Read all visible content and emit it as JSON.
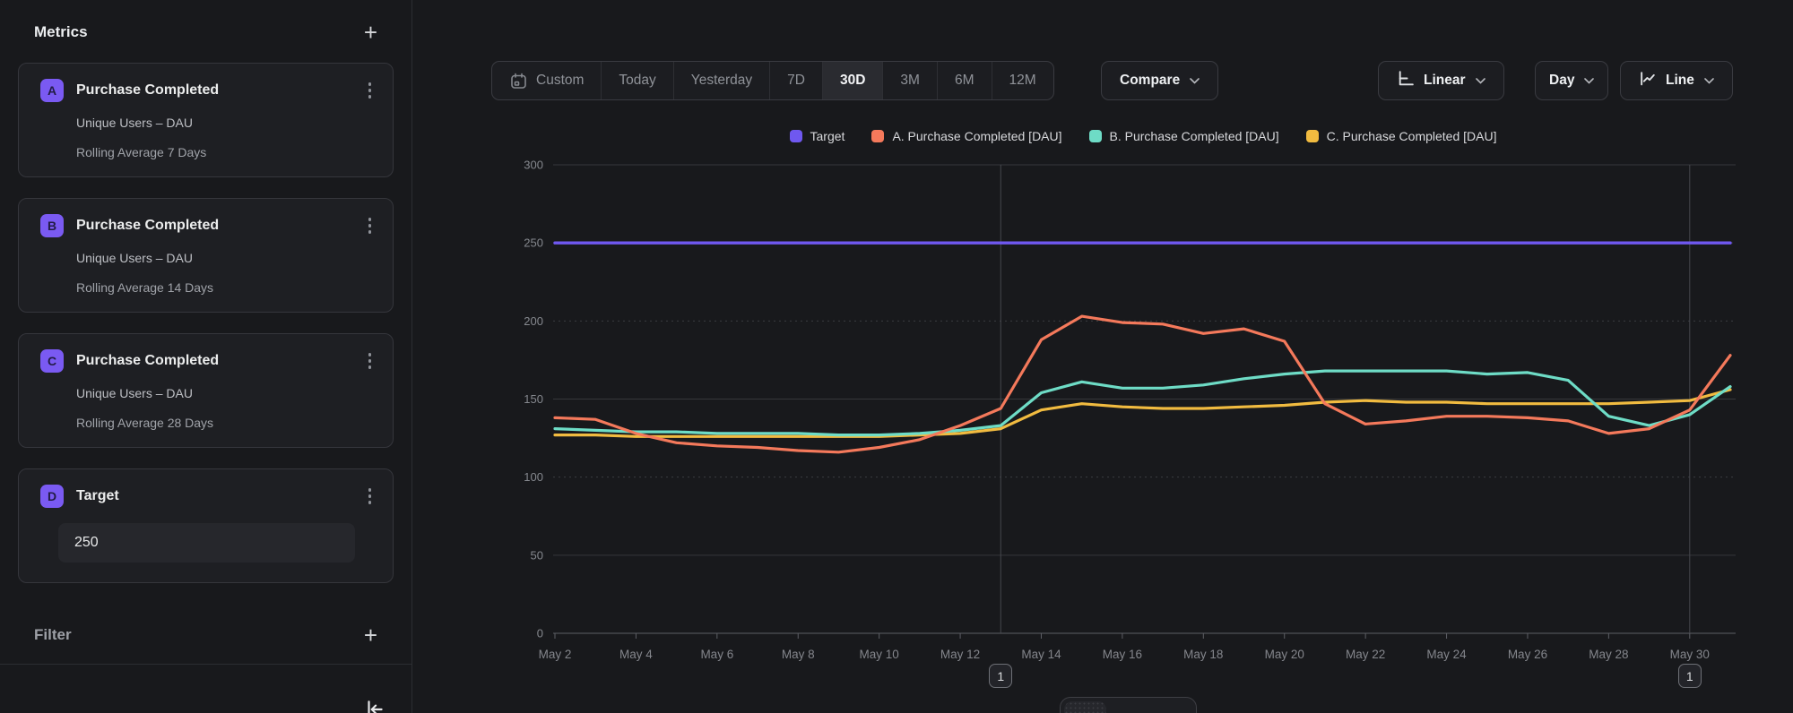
{
  "sidebar": {
    "metrics_header": {
      "label": "Metrics"
    },
    "filter_header": {
      "label": "Filter"
    },
    "metric_cards": [
      {
        "badge": "A",
        "title": "Purchase Completed",
        "measure": "Unique Users – DAU",
        "transform": "Rolling Average 7 Days"
      },
      {
        "badge": "B",
        "title": "Purchase Completed",
        "measure": "Unique Users – DAU",
        "transform": "Rolling Average 14 Days"
      },
      {
        "badge": "C",
        "title": "Purchase Completed",
        "measure": "Unique Users – DAU",
        "transform": "Rolling Average 28 Days"
      }
    ],
    "target_card": {
      "badge": "D",
      "title": "Target",
      "value": "250"
    },
    "icons": {
      "add": "+",
      "kebab": "kebab-menu-icon",
      "collapse": "collapse-left-icon",
      "badge_color": "#7a5af2"
    }
  },
  "toolbar": {
    "date_ranges": [
      {
        "label": "Custom",
        "icon": "calendar-icon",
        "active": false
      },
      {
        "label": "Today",
        "active": false
      },
      {
        "label": "Yesterday",
        "active": false
      },
      {
        "label": "7D",
        "active": false
      },
      {
        "label": "30D",
        "active": true
      },
      {
        "label": "3M",
        "active": false
      },
      {
        "label": "6M",
        "active": false
      },
      {
        "label": "12M",
        "active": false
      }
    ],
    "compare_label": "Compare",
    "scale_label": "Linear",
    "interval_label": "Day",
    "chart_type_label": "Line"
  },
  "chart_data": {
    "type": "line",
    "title": "",
    "xlabel": "",
    "ylabel": "",
    "ylim": [
      0,
      300
    ],
    "yticks": [
      0,
      50,
      100,
      150,
      200,
      250,
      300
    ],
    "grid": true,
    "legend_position": "top",
    "x": [
      "May 2",
      "May 3",
      "May 4",
      "May 5",
      "May 6",
      "May 7",
      "May 8",
      "May 9",
      "May 10",
      "May 11",
      "May 12",
      "May 13",
      "May 14",
      "May 15",
      "May 16",
      "May 17",
      "May 18",
      "May 19",
      "May 20",
      "May 21",
      "May 22",
      "May 23",
      "May 24",
      "May 25",
      "May 26",
      "May 27",
      "May 28",
      "May 29",
      "May 30",
      "May 31"
    ],
    "x_tick_labels": [
      "May 2",
      "May 4",
      "May 6",
      "May 8",
      "May 10",
      "May 12",
      "May 14",
      "May 16",
      "May 18",
      "May 20",
      "May 22",
      "May 24",
      "May 26",
      "May 28",
      "May 30"
    ],
    "series": [
      {
        "name": "Target",
        "color": "#6f58f0",
        "values": [
          250,
          250,
          250,
          250,
          250,
          250,
          250,
          250,
          250,
          250,
          250,
          250,
          250,
          250,
          250,
          250,
          250,
          250,
          250,
          250,
          250,
          250,
          250,
          250,
          250,
          250,
          250,
          250,
          250,
          250
        ]
      },
      {
        "name": "A. Purchase Completed [DAU]",
        "color": "#f4795b",
        "values": [
          138,
          137,
          128,
          122,
          120,
          119,
          117,
          116,
          119,
          124,
          133,
          144,
          188,
          203,
          199,
          198,
          192,
          195,
          187,
          147,
          134,
          136,
          139,
          139,
          138,
          136,
          128,
          131,
          143,
          178
        ]
      },
      {
        "name": "B. Purchase Completed [DAU]",
        "color": "#6edcc6",
        "values": [
          131,
          130,
          129,
          129,
          128,
          128,
          128,
          127,
          127,
          128,
          130,
          133,
          154,
          161,
          157,
          157,
          159,
          163,
          166,
          168,
          168,
          168,
          168,
          166,
          167,
          162,
          139,
          133,
          140,
          158
        ]
      },
      {
        "name": "C. Purchase Completed [DAU]",
        "color": "#f1bb40",
        "values": [
          127,
          127,
          126,
          126,
          126,
          126,
          126,
          126,
          126,
          127,
          128,
          131,
          143,
          147,
          145,
          144,
          144,
          145,
          146,
          148,
          149,
          148,
          148,
          147,
          147,
          147,
          147,
          148,
          149,
          156
        ]
      }
    ],
    "annotations": [
      {
        "label": "1",
        "x": "May 13"
      },
      {
        "label": "1",
        "x": "May 30"
      }
    ]
  },
  "bottom_toolbar": {
    "views": [
      {
        "name": "chart-view",
        "active": true
      },
      {
        "name": "chart-and-table-view",
        "active": false
      },
      {
        "name": "table-view",
        "active": false
      }
    ]
  }
}
